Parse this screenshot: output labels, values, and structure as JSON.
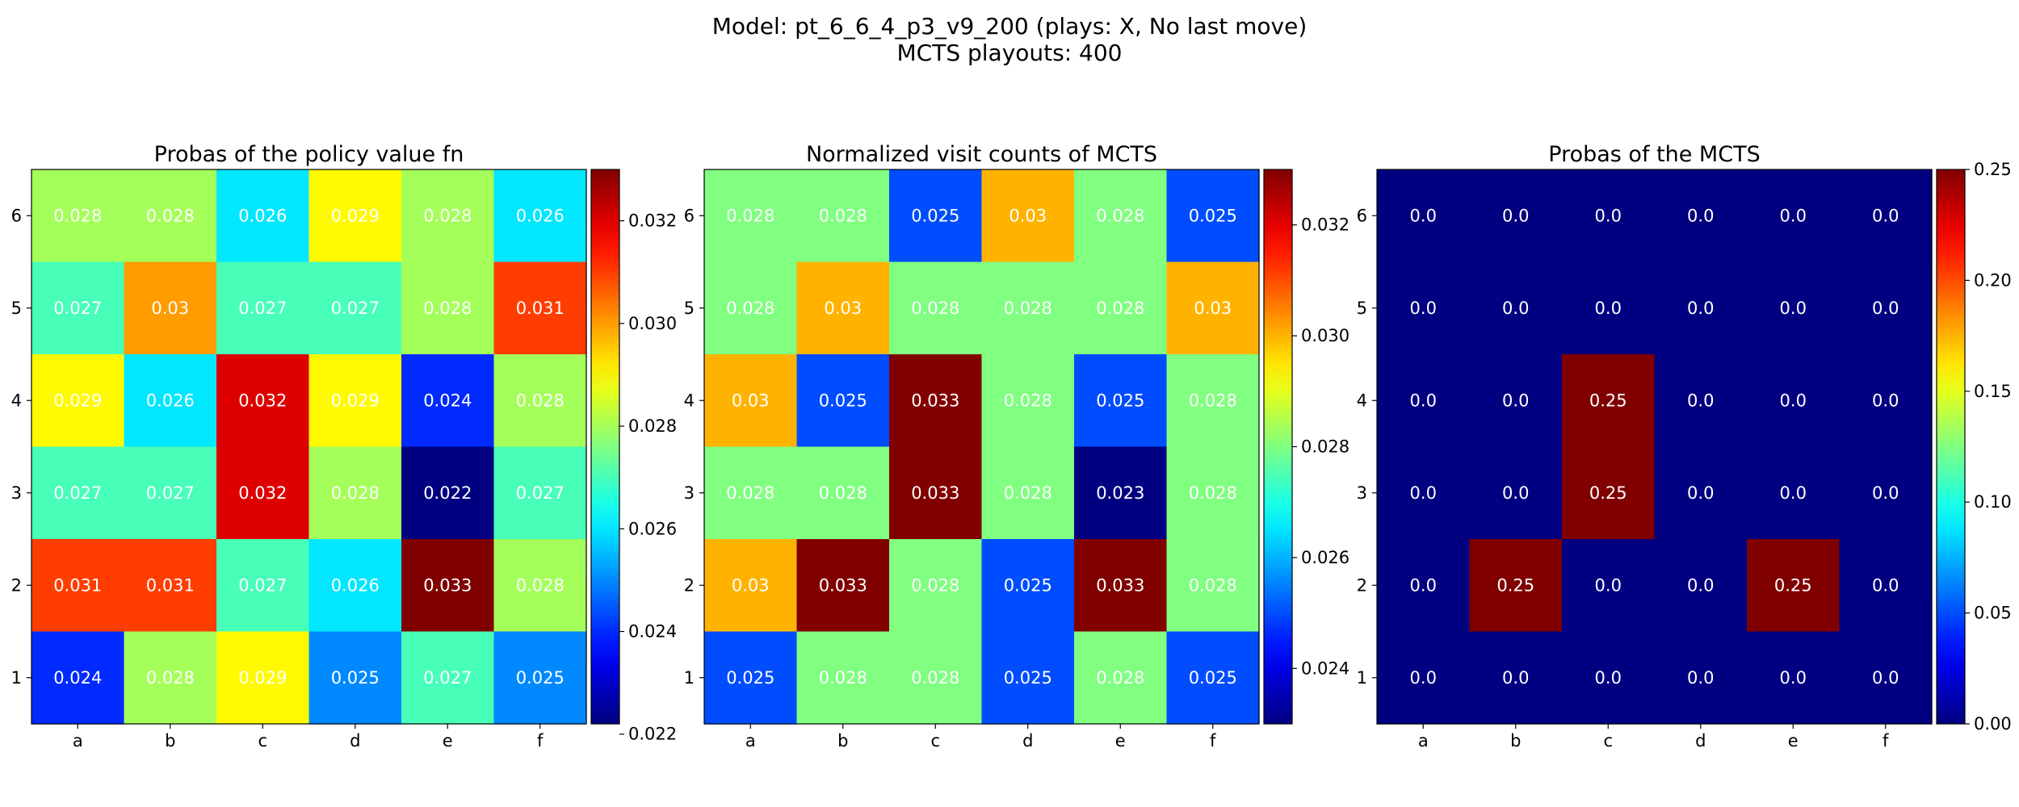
{
  "figure": {
    "title_line1": "Model: pt_6_6_4_p3_v9_200 (plays: X, No last move)",
    "title_line2": "MCTS playouts: 400"
  },
  "colormap": "jet",
  "chart_data": [
    {
      "type": "heatmap",
      "title": "Probas of the policy value fn",
      "x_labels": [
        "a",
        "b",
        "c",
        "d",
        "e",
        "f"
      ],
      "y_labels": [
        "6",
        "5",
        "4",
        "3",
        "2",
        "1"
      ],
      "values": [
        [
          0.028,
          0.028,
          0.026,
          0.029,
          0.028,
          0.026
        ],
        [
          0.027,
          0.03,
          0.027,
          0.027,
          0.028,
          0.031
        ],
        [
          0.029,
          0.026,
          0.032,
          0.029,
          0.024,
          0.028
        ],
        [
          0.027,
          0.027,
          0.032,
          0.028,
          0.022,
          0.027
        ],
        [
          0.031,
          0.031,
          0.027,
          0.026,
          0.033,
          0.028
        ],
        [
          0.024,
          0.028,
          0.029,
          0.025,
          0.027,
          0.025
        ]
      ],
      "cell_labels": [
        [
          "0.028",
          "0.028",
          "0.026",
          "0.029",
          "0.028",
          "0.026"
        ],
        [
          "0.027",
          "0.03",
          "0.027",
          "0.027",
          "0.028",
          "0.031"
        ],
        [
          "0.029",
          "0.026",
          "0.032",
          "0.029",
          "0.024",
          "0.028"
        ],
        [
          "0.027",
          "0.027",
          "0.032",
          "0.028",
          "0.022",
          "0.027"
        ],
        [
          "0.031",
          "0.031",
          "0.027",
          "0.026",
          "0.033",
          "0.028"
        ],
        [
          "0.024",
          "0.028",
          "0.029",
          "0.025",
          "0.027",
          "0.025"
        ]
      ],
      "colorbar": {
        "vmin": 0.0222,
        "vmax": 0.033,
        "ticks": [
          0.022,
          0.024,
          0.026,
          0.028,
          0.03,
          0.032
        ],
        "tick_labels": [
          "0.022",
          "0.024",
          "0.026",
          "0.028",
          "0.030",
          "0.032"
        ]
      }
    },
    {
      "type": "heatmap",
      "title": "Normalized visit counts of MCTS",
      "x_labels": [
        "a",
        "b",
        "c",
        "d",
        "e",
        "f"
      ],
      "y_labels": [
        "6",
        "5",
        "4",
        "3",
        "2",
        "1"
      ],
      "values": [
        [
          0.028,
          0.028,
          0.025,
          0.03,
          0.028,
          0.025
        ],
        [
          0.028,
          0.03,
          0.028,
          0.028,
          0.028,
          0.03
        ],
        [
          0.03,
          0.025,
          0.033,
          0.028,
          0.025,
          0.028
        ],
        [
          0.028,
          0.028,
          0.033,
          0.028,
          0.023,
          0.028
        ],
        [
          0.03,
          0.033,
          0.028,
          0.025,
          0.033,
          0.028
        ],
        [
          0.025,
          0.028,
          0.028,
          0.025,
          0.028,
          0.025
        ]
      ],
      "cell_labels": [
        [
          "0.028",
          "0.028",
          "0.025",
          "0.03",
          "0.028",
          "0.025"
        ],
        [
          "0.028",
          "0.03",
          "0.028",
          "0.028",
          "0.028",
          "0.03"
        ],
        [
          "0.03",
          "0.025",
          "0.033",
          "0.028",
          "0.025",
          "0.028"
        ],
        [
          "0.028",
          "0.028",
          "0.033",
          "0.028",
          "0.023",
          "0.028"
        ],
        [
          "0.03",
          "0.033",
          "0.028",
          "0.025",
          "0.033",
          "0.028"
        ],
        [
          "0.025",
          "0.028",
          "0.028",
          "0.025",
          "0.028",
          "0.025"
        ]
      ],
      "colorbar": {
        "vmin": 0.023,
        "vmax": 0.033,
        "ticks": [
          0.024,
          0.026,
          0.028,
          0.03,
          0.032
        ],
        "tick_labels": [
          "0.024",
          "0.026",
          "0.028",
          "0.030",
          "0.032"
        ]
      }
    },
    {
      "type": "heatmap",
      "title": "Probas of the MCTS",
      "x_labels": [
        "a",
        "b",
        "c",
        "d",
        "e",
        "f"
      ],
      "y_labels": [
        "6",
        "5",
        "4",
        "3",
        "2",
        "1"
      ],
      "values": [
        [
          0.0,
          0.0,
          0.0,
          0.0,
          0.0,
          0.0
        ],
        [
          0.0,
          0.0,
          0.0,
          0.0,
          0.0,
          0.0
        ],
        [
          0.0,
          0.0,
          0.25,
          0.0,
          0.0,
          0.0
        ],
        [
          0.0,
          0.0,
          0.25,
          0.0,
          0.0,
          0.0
        ],
        [
          0.0,
          0.25,
          0.0,
          0.0,
          0.25,
          0.0
        ],
        [
          0.0,
          0.0,
          0.0,
          0.0,
          0.0,
          0.0
        ]
      ],
      "cell_labels": [
        [
          "0.0",
          "0.0",
          "0.0",
          "0.0",
          "0.0",
          "0.0"
        ],
        [
          "0.0",
          "0.0",
          "0.0",
          "0.0",
          "0.0",
          "0.0"
        ],
        [
          "0.0",
          "0.0",
          "0.25",
          "0.0",
          "0.0",
          "0.0"
        ],
        [
          "0.0",
          "0.0",
          "0.25",
          "0.0",
          "0.0",
          "0.0"
        ],
        [
          "0.0",
          "0.25",
          "0.0",
          "0.0",
          "0.25",
          "0.0"
        ],
        [
          "0.0",
          "0.0",
          "0.0",
          "0.0",
          "0.0",
          "0.0"
        ]
      ],
      "colorbar": {
        "vmin": 0.0,
        "vmax": 0.25,
        "ticks": [
          0.0,
          0.05,
          0.1,
          0.15,
          0.2,
          0.25
        ],
        "tick_labels": [
          "0.00",
          "0.05",
          "0.10",
          "0.15",
          "0.20",
          "0.25"
        ]
      }
    }
  ]
}
